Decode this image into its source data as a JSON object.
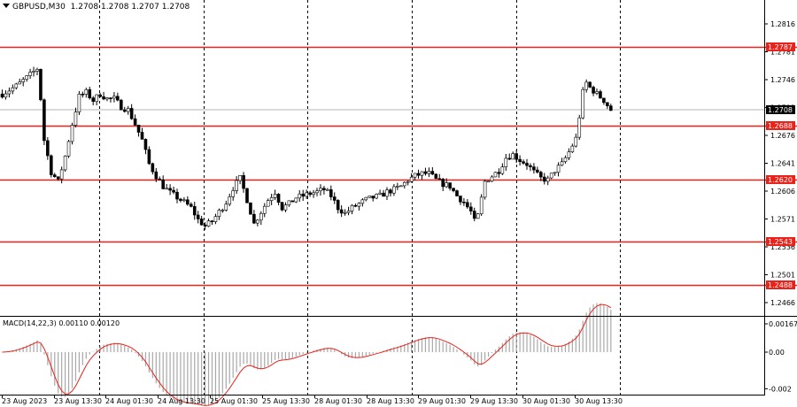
{
  "header": {
    "symbol_label": "GBPUSD,M30",
    "ohlc": [
      "1.2708",
      "1.2708",
      "1.2707",
      "1.2708"
    ]
  },
  "macd_header": {
    "label": "MACD(14,22,3)",
    "values": [
      "0.00110",
      "0.00120"
    ]
  },
  "colors": {
    "background": "#ffffff",
    "candles": "#000000",
    "levels": "#e8231b",
    "macd_signal": "#e8231b",
    "macd_hist": "#a8a8a8",
    "grid": "#000000"
  },
  "chart_data": [
    {
      "type": "candlestick",
      "title": "GBPUSD,M30",
      "ylim": [
        1.2445,
        1.2845
      ],
      "y_ticks": [
        "1.2816",
        "1.2781",
        "1.2746",
        "1.2711",
        "1.2676",
        "1.2641",
        "1.2606",
        "1.2571",
        "1.2536",
        "1.2501",
        "1.2466"
      ],
      "current_price": "1.2708",
      "levels": [
        "1.2787",
        "1.2688",
        "1.2620",
        "1.2543",
        "1.2488"
      ],
      "x_labels": [
        "23 Aug 2023",
        "23 Aug 13:30",
        "24 Aug 01:30",
        "24 Aug 13:30",
        "25 Aug 01:30",
        "25 Aug 13:30",
        "28 Aug 01:30",
        "28 Aug 13:30",
        "29 Aug 01:30",
        "29 Aug 13:30",
        "30 Aug 01:30",
        "30 Aug 13:30"
      ],
      "close_path": [
        [
          0,
          1.2728
        ],
        [
          4,
          1.2738
        ],
        [
          8,
          1.2752
        ],
        [
          10,
          1.276
        ],
        [
          11,
          1.2722
        ],
        [
          12,
          1.267
        ],
        [
          14,
          1.263
        ],
        [
          16,
          1.2618
        ],
        [
          18,
          1.265
        ],
        [
          20,
          1.269
        ],
        [
          22,
          1.2725
        ],
        [
          24,
          1.273
        ],
        [
          26,
          1.272
        ],
        [
          28,
          1.2728
        ],
        [
          30,
          1.2722
        ],
        [
          32,
          1.2722
        ],
        [
          34,
          1.2712
        ],
        [
          36,
          1.2708
        ],
        [
          38,
          1.269
        ],
        [
          40,
          1.267
        ],
        [
          42,
          1.264
        ],
        [
          44,
          1.2625
        ],
        [
          46,
          1.2612
        ],
        [
          48,
          1.2604
        ],
        [
          50,
          1.2598
        ],
        [
          52,
          1.2592
        ],
        [
          54,
          1.2585
        ],
        [
          56,
          1.257
        ],
        [
          58,
          1.2562
        ],
        [
          60,
          1.2568
        ],
        [
          62,
          1.258
        ],
        [
          64,
          1.2592
        ],
        [
          66,
          1.261
        ],
        [
          68,
          1.2622
        ],
        [
          70,
          1.2595
        ],
        [
          72,
          1.2565
        ],
        [
          74,
          1.258
        ],
        [
          76,
          1.2595
        ],
        [
          78,
          1.2605
        ],
        [
          80,
          1.2585
        ],
        [
          82,
          1.259
        ],
        [
          84,
          1.2598
        ],
        [
          86,
          1.26
        ],
        [
          88,
          1.2603
        ],
        [
          90,
          1.2605
        ],
        [
          92,
          1.2608
        ],
        [
          94,
          1.26
        ],
        [
          96,
          1.2585
        ],
        [
          98,
          1.2578
        ],
        [
          100,
          1.2585
        ],
        [
          102,
          1.259
        ],
        [
          104,
          1.2595
        ],
        [
          106,
          1.2598
        ],
        [
          108,
          1.26
        ],
        [
          110,
          1.2605
        ],
        [
          112,
          1.2608
        ],
        [
          114,
          1.2612
        ],
        [
          116,
          1.262
        ],
        [
          118,
          1.2625
        ],
        [
          120,
          1.2628
        ],
        [
          122,
          1.2628
        ],
        [
          124,
          1.262
        ],
        [
          126,
          1.2615
        ],
        [
          128,
          1.2612
        ],
        [
          130,
          1.26
        ],
        [
          132,
          1.2592
        ],
        [
          134,
          1.258
        ],
        [
          135,
          1.2568
        ],
        [
          136,
          1.2575
        ],
        [
          138,
          1.2618
        ],
        [
          140,
          1.2625
        ],
        [
          142,
          1.2632
        ],
        [
          144,
          1.2648
        ],
        [
          146,
          1.2652
        ],
        [
          148,
          1.2645
        ],
        [
          150,
          1.264
        ],
        [
          152,
          1.263
        ],
        [
          154,
          1.2622
        ],
        [
          156,
          1.262
        ],
        [
          158,
          1.2632
        ],
        [
          160,
          1.264
        ],
        [
          162,
          1.2655
        ],
        [
          164,
          1.2672
        ],
        [
          165,
          1.27
        ],
        [
          166,
          1.273
        ],
        [
          167,
          1.2742
        ],
        [
          168,
          1.2736
        ],
        [
          170,
          1.2728
        ],
        [
          172,
          1.272
        ],
        [
          174,
          1.2708
        ]
      ]
    },
    {
      "type": "bar",
      "title": "MACD(14,22,3)",
      "ylim": [
        -0.002,
        0.00167
      ],
      "y_ticks": [
        "0.00167",
        "0.00",
        "-0.002"
      ],
      "last_values": [
        "0.00110",
        "0.00120"
      ]
    }
  ]
}
